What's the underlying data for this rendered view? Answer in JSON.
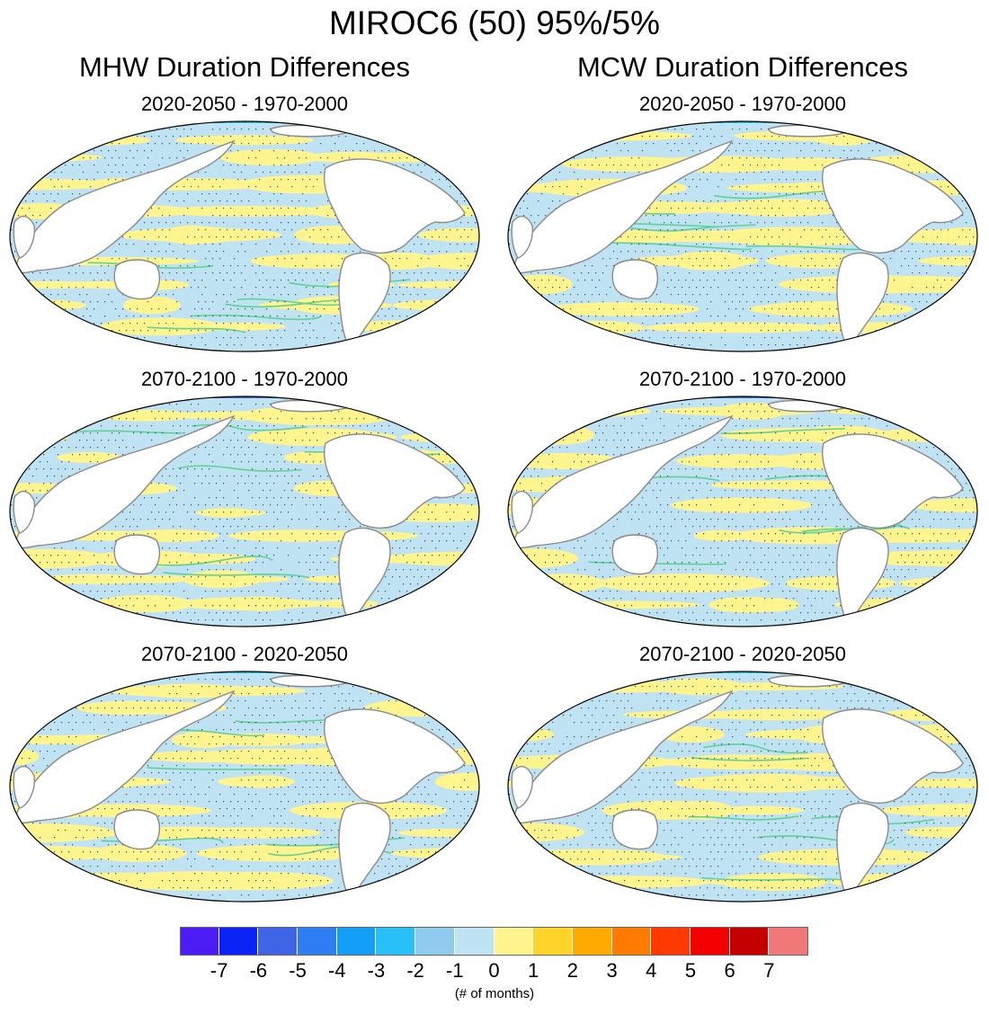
{
  "title": "MIROC6 (50) 95%/5%",
  "columns": [
    {
      "title": "MHW Duration Differences"
    },
    {
      "title": "MCW Duration Differences"
    }
  ],
  "panels": [
    {
      "id": "mhw-1",
      "column": 0,
      "row": 0,
      "subtitle": "2020-2050 - 1970-2000"
    },
    {
      "id": "mcw-1",
      "column": 1,
      "row": 0,
      "subtitle": "2020-2050 - 1970-2000"
    },
    {
      "id": "mhw-2",
      "column": 0,
      "row": 1,
      "subtitle": "2070-2100 - 1970-2000"
    },
    {
      "id": "mcw-2",
      "column": 1,
      "row": 1,
      "subtitle": "2070-2100 - 1970-2000"
    },
    {
      "id": "mhw-3",
      "column": 0,
      "row": 2,
      "subtitle": "2070-2100 - 2020-2050"
    },
    {
      "id": "mcw-3",
      "column": 1,
      "row": 2,
      "subtitle": "2070-2100 - 2020-2050"
    }
  ],
  "colorbar": {
    "colors": [
      "#4b1cf5",
      "#0b24f5",
      "#3f64e6",
      "#2e7df2",
      "#139ff7",
      "#29c0f7",
      "#8ecbee",
      "#c0e3f4",
      "#fff48d",
      "#ffd42a",
      "#ffaa00",
      "#ff7a00",
      "#ff3a00",
      "#f40000",
      "#c40000",
      "#f07878"
    ],
    "labels": [
      "-7",
      "-6",
      "-5",
      "-4",
      "-3",
      "-2",
      "-1",
      "0",
      "1",
      "2",
      "3",
      "4",
      "5",
      "6",
      "7"
    ],
    "units": "(# of months)"
  },
  "map_style": {
    "ocean_light_blue": "#c0e3f4",
    "ocean_yellow": "#fff48d",
    "contour_green": "#5ed296",
    "coast_gray": "#8a8a8a",
    "land": "#ffffff",
    "stipple": "#1e2c48"
  }
}
